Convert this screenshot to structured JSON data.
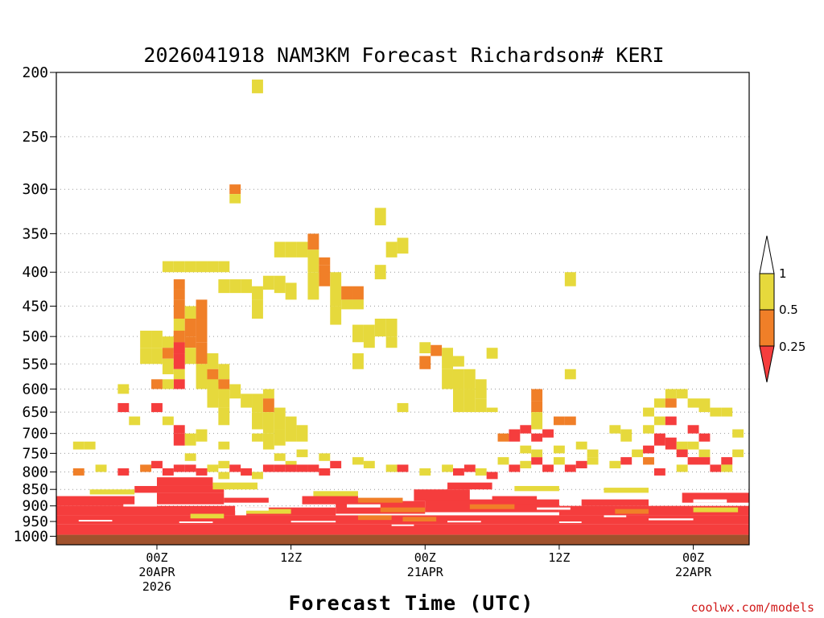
{
  "chart_data": {
    "type": "heatmap",
    "title": "2026041918 NAM3KM Forecast Richardson# KERI",
    "xlabel": "Forecast Time (UTC)",
    "ylabel": "",
    "credit": "coolwx.com/models",
    "y_scale": "log-pressure (inverted)",
    "y_range_hPa": [
      1030,
      200
    ],
    "x_range_hours": [
      -4.5,
      26.5
    ],
    "grid": "horizontal dotted at labeled pressure levels",
    "y_ticks": [
      "200",
      "250",
      "300",
      "350",
      "400",
      "450",
      "500",
      "550",
      "600",
      "650",
      "700",
      "750",
      "800",
      "850",
      "900",
      "950",
      "1000"
    ],
    "x_ticks": [
      {
        "line1": "00Z",
        "line2": "20APR",
        "line3": "2026"
      },
      {
        "line1": "12Z",
        "line2": "",
        "line3": ""
      },
      {
        "line1": "00Z",
        "line2": "21APR",
        "line3": ""
      },
      {
        "line1": "12Z",
        "line2": "",
        "line3": ""
      },
      {
        "line1": "00Z",
        "line2": "22APR",
        "line3": ""
      }
    ],
    "legend": {
      "placement": "right",
      "labels": [
        "1",
        "0.5",
        "0.25"
      ],
      "bins": [
        {
          "range": "<0.25",
          "color": "#f53d3d"
        },
        {
          "range": "0.25-0.5",
          "color": "#f07f28"
        },
        {
          "range": "0.5-1",
          "color": "#e6d93c"
        },
        {
          "range": ">1",
          "color": "#ffffff"
        }
      ]
    },
    "ground": {
      "color": "#a0522d",
      "pressure_top_hPa": 995
    },
    "colors": {
      "red": "#f53d3d",
      "orange": "#f07f28",
      "yellow": "#e6d93c"
    },
    "cells": [
      [
        4.5,
        205,
        215,
        "y"
      ],
      [
        3.5,
        295,
        305,
        "o"
      ],
      [
        3.5,
        305,
        315,
        "y"
      ],
      [
        0.5,
        385,
        400,
        "y"
      ],
      [
        1,
        385,
        400,
        "y"
      ],
      [
        1.5,
        385,
        400,
        "y"
      ],
      [
        2,
        385,
        400,
        "y"
      ],
      [
        2.5,
        385,
        400,
        "y"
      ],
      [
        3,
        385,
        400,
        "y"
      ],
      [
        1,
        410,
        425,
        "o"
      ],
      [
        1,
        425,
        440,
        "o"
      ],
      [
        1,
        440,
        470,
        "o"
      ],
      [
        1,
        470,
        500,
        "y"
      ],
      [
        1,
        500,
        530,
        "y"
      ],
      [
        1.5,
        450,
        470,
        "y"
      ],
      [
        1.5,
        470,
        500,
        "o"
      ],
      [
        1.5,
        500,
        520,
        "o"
      ],
      [
        1.5,
        520,
        550,
        "y"
      ],
      [
        2,
        440,
        470,
        "o"
      ],
      [
        2,
        470,
        510,
        "o"
      ],
      [
        2,
        510,
        550,
        "o"
      ],
      [
        2,
        550,
        600,
        "y"
      ],
      [
        2.5,
        530,
        560,
        "y"
      ],
      [
        2.5,
        560,
        590,
        "o"
      ],
      [
        2.5,
        590,
        640,
        "y"
      ],
      [
        3,
        550,
        580,
        "y"
      ],
      [
        3,
        580,
        600,
        "o"
      ],
      [
        3,
        600,
        640,
        "y"
      ],
      [
        3,
        640,
        680,
        "y"
      ],
      [
        3,
        410,
        430,
        "y"
      ],
      [
        3.5,
        410,
        430,
        "y"
      ],
      [
        4,
        410,
        430,
        "y"
      ],
      [
        4.5,
        420,
        440,
        "y"
      ],
      [
        4.5,
        440,
        470,
        "y"
      ],
      [
        5,
        405,
        425,
        "y"
      ],
      [
        5.5,
        405,
        430,
        "y"
      ],
      [
        6,
        415,
        440,
        "y"
      ],
      [
        3.5,
        590,
        620,
        "y"
      ],
      [
        4,
        610,
        640,
        "y"
      ],
      [
        4.5,
        610,
        650,
        "y"
      ],
      [
        5,
        600,
        620,
        "y"
      ],
      [
        5,
        620,
        650,
        "o"
      ],
      [
        4.5,
        650,
        690,
        "y"
      ],
      [
        5,
        650,
        700,
        "y"
      ],
      [
        5.5,
        640,
        690,
        "y"
      ],
      [
        6,
        660,
        720,
        "y"
      ],
      [
        6.5,
        680,
        720,
        "y"
      ],
      [
        5,
        700,
        740,
        "y"
      ],
      [
        5.5,
        690,
        730,
        "y"
      ],
      [
        4,
        790,
        810,
        "y"
      ],
      [
        4.5,
        800,
        820,
        "y"
      ],
      [
        3,
        800,
        820,
        "y"
      ],
      [
        5.5,
        360,
        380,
        "y"
      ],
      [
        6,
        360,
        380,
        "y"
      ],
      [
        6.5,
        360,
        380,
        "y"
      ],
      [
        7,
        350,
        370,
        "o"
      ],
      [
        7,
        370,
        400,
        "y"
      ],
      [
        7.5,
        380,
        390,
        "o"
      ],
      [
        7.5,
        390,
        420,
        "o"
      ],
      [
        7,
        400,
        440,
        "y"
      ],
      [
        8,
        400,
        450,
        "y"
      ],
      [
        8,
        450,
        480,
        "y"
      ],
      [
        8.5,
        420,
        440,
        "o"
      ],
      [
        9,
        420,
        440,
        "o"
      ],
      [
        8.5,
        440,
        455,
        "y"
      ],
      [
        9,
        440,
        455,
        "y"
      ],
      [
        9,
        480,
        510,
        "y"
      ],
      [
        9.5,
        480,
        520,
        "y"
      ],
      [
        10,
        470,
        500,
        "y"
      ],
      [
        10.5,
        470,
        500,
        "y"
      ],
      [
        9,
        530,
        560,
        "y"
      ],
      [
        10.5,
        500,
        520,
        "y"
      ],
      [
        10,
        390,
        410,
        "y"
      ],
      [
        10.5,
        360,
        380,
        "y"
      ],
      [
        11,
        355,
        375,
        "y"
      ],
      [
        10,
        320,
        340,
        "y"
      ],
      [
        11,
        630,
        650,
        "y"
      ],
      [
        12,
        510,
        530,
        "y"
      ],
      [
        12.5,
        515,
        535,
        "o"
      ],
      [
        12,
        535,
        560,
        "o"
      ],
      [
        13,
        520,
        560,
        "y"
      ],
      [
        13.5,
        535,
        555,
        "y"
      ],
      [
        13,
        560,
        600,
        "y"
      ],
      [
        13.5,
        560,
        600,
        "y"
      ],
      [
        14,
        560,
        600,
        "y"
      ],
      [
        14.5,
        580,
        620,
        "y"
      ],
      [
        15,
        520,
        540,
        "y"
      ],
      [
        13.5,
        600,
        650,
        "y"
      ],
      [
        14,
        600,
        650,
        "y"
      ],
      [
        14.5,
        620,
        650,
        "y"
      ],
      [
        15,
        640,
        650,
        "y"
      ],
      [
        17,
        600,
        625,
        "o"
      ],
      [
        17,
        625,
        650,
        "o"
      ],
      [
        17,
        650,
        690,
        "y"
      ],
      [
        16.5,
        680,
        700,
        "r"
      ],
      [
        17,
        700,
        720,
        "r"
      ],
      [
        17.5,
        690,
        710,
        "r"
      ],
      [
        18,
        660,
        680,
        "o"
      ],
      [
        18.5,
        660,
        680,
        "o"
      ],
      [
        18.5,
        560,
        580,
        "y"
      ],
      [
        18.5,
        400,
        420,
        "y"
      ],
      [
        -3.5,
        720,
        740,
        "y"
      ],
      [
        -3,
        720,
        740,
        "y"
      ],
      [
        -1.5,
        590,
        610,
        "y"
      ],
      [
        -1.5,
        630,
        650,
        "r"
      ],
      [
        -1,
        660,
        680,
        "y"
      ],
      [
        0,
        630,
        650,
        "r"
      ],
      [
        -0.5,
        490,
        520,
        "y"
      ],
      [
        0,
        490,
        520,
        "y"
      ],
      [
        -0.5,
        520,
        550,
        "y"
      ],
      [
        0,
        520,
        550,
        "y"
      ],
      [
        0.5,
        500,
        520,
        "y"
      ],
      [
        0.5,
        520,
        540,
        "o"
      ],
      [
        0.5,
        540,
        570,
        "y"
      ],
      [
        1,
        490,
        510,
        "o"
      ],
      [
        1,
        510,
        530,
        "r"
      ],
      [
        1,
        530,
        560,
        "r"
      ],
      [
        1,
        560,
        580,
        "y"
      ],
      [
        1,
        580,
        600,
        "r"
      ],
      [
        0,
        580,
        600,
        "o"
      ],
      [
        0.5,
        580,
        600,
        "y"
      ],
      [
        1,
        680,
        700,
        "r"
      ],
      [
        1,
        700,
        730,
        "r"
      ],
      [
        1.5,
        700,
        730,
        "y"
      ],
      [
        2,
        690,
        720,
        "y"
      ],
      [
        2.5,
        580,
        620,
        "y"
      ],
      [
        0.5,
        660,
        680,
        "y"
      ],
      [
        1.5,
        750,
        770,
        "y"
      ],
      [
        3,
        720,
        740,
        "y"
      ],
      [
        4.5,
        700,
        720,
        "y"
      ],
      [
        5.5,
        750,
        770,
        "y"
      ],
      [
        6,
        770,
        790,
        "y"
      ],
      [
        6.5,
        740,
        760,
        "y"
      ],
      [
        7.5,
        750,
        770,
        "y"
      ],
      [
        5,
        780,
        800,
        "r"
      ],
      [
        5.5,
        780,
        800,
        "r"
      ],
      [
        6,
        780,
        800,
        "r"
      ],
      [
        7,
        780,
        800,
        "r"
      ],
      [
        6.5,
        780,
        800,
        "r"
      ],
      [
        8,
        770,
        790,
        "r"
      ],
      [
        7.5,
        790,
        810,
        "r"
      ],
      [
        9,
        760,
        780,
        "y"
      ],
      [
        9.5,
        770,
        790,
        "y"
      ],
      [
        -2.5,
        780,
        800,
        "y"
      ],
      [
        -3.5,
        790,
        810,
        "o"
      ],
      [
        -1.5,
        790,
        810,
        "r"
      ],
      [
        -0.5,
        780,
        800,
        "o"
      ],
      [
        0,
        770,
        790,
        "r"
      ],
      [
        0.5,
        790,
        810,
        "r"
      ],
      [
        1,
        780,
        800,
        "r"
      ],
      [
        1.5,
        780,
        800,
        "r"
      ],
      [
        2,
        790,
        810,
        "r"
      ],
      [
        2.5,
        780,
        800,
        "y"
      ],
      [
        3,
        770,
        790,
        "y"
      ],
      [
        3.5,
        780,
        800,
        "r"
      ],
      [
        4,
        790,
        810,
        "r"
      ],
      [
        10.5,
        780,
        800,
        "y"
      ],
      [
        11,
        780,
        800,
        "r"
      ],
      [
        12,
        790,
        810,
        "y"
      ],
      [
        13,
        780,
        800,
        "y"
      ],
      [
        13.5,
        790,
        810,
        "r"
      ],
      [
        14,
        780,
        800,
        "r"
      ],
      [
        14.5,
        790,
        810,
        "y"
      ],
      [
        15,
        800,
        820,
        "r"
      ],
      [
        15.5,
        760,
        780,
        "y"
      ],
      [
        16,
        780,
        800,
        "r"
      ],
      [
        16.5,
        770,
        790,
        "y"
      ],
      [
        17,
        760,
        780,
        "r"
      ],
      [
        17.5,
        780,
        800,
        "r"
      ],
      [
        18,
        760,
        780,
        "y"
      ],
      [
        18.5,
        780,
        800,
        "r"
      ],
      [
        19,
        770,
        790,
        "r"
      ],
      [
        19.5,
        740,
        760,
        "y"
      ],
      [
        15.5,
        700,
        720,
        "o"
      ],
      [
        16,
        690,
        720,
        "r"
      ],
      [
        16.5,
        730,
        750,
        "y"
      ],
      [
        17,
        740,
        760,
        "y"
      ],
      [
        18,
        730,
        750,
        "y"
      ],
      [
        19.5,
        760,
        780,
        "y"
      ],
      [
        20.5,
        770,
        790,
        "y"
      ],
      [
        21,
        760,
        780,
        "r"
      ],
      [
        21.5,
        740,
        760,
        "y"
      ],
      [
        22,
        730,
        750,
        "r"
      ],
      [
        22.5,
        700,
        730,
        "r"
      ],
      [
        22,
        680,
        700,
        "y"
      ],
      [
        23,
        710,
        740,
        "r"
      ],
      [
        23.5,
        720,
        750,
        "y"
      ],
      [
        24,
        760,
        780,
        "r"
      ],
      [
        24.5,
        740,
        760,
        "y"
      ],
      [
        25,
        780,
        800,
        "r"
      ],
      [
        25.5,
        760,
        780,
        "r"
      ],
      [
        26,
        740,
        760,
        "y"
      ],
      [
        26,
        690,
        710,
        "y"
      ],
      [
        22,
        640,
        660,
        "y"
      ],
      [
        22.5,
        620,
        640,
        "y"
      ],
      [
        22.5,
        660,
        680,
        "y"
      ],
      [
        23,
        600,
        620,
        "y"
      ],
      [
        23,
        620,
        640,
        "o"
      ],
      [
        23.5,
        600,
        620,
        "y"
      ],
      [
        24,
        620,
        640,
        "y"
      ],
      [
        24.5,
        620,
        650,
        "y"
      ],
      [
        25,
        640,
        660,
        "y"
      ],
      [
        25.5,
        640,
        660,
        "y"
      ],
      [
        23,
        660,
        680,
        "r"
      ],
      [
        24,
        680,
        700,
        "r"
      ],
      [
        24.5,
        700,
        720,
        "r"
      ],
      [
        24,
        720,
        740,
        "y"
      ],
      [
        23.5,
        740,
        760,
        "r"
      ],
      [
        22,
        760,
        780,
        "o"
      ],
      [
        22.5,
        790,
        810,
        "r"
      ],
      [
        23.5,
        780,
        800,
        "y"
      ],
      [
        24.5,
        760,
        780,
        "r"
      ],
      [
        25.5,
        780,
        800,
        "y"
      ],
      [
        21,
        690,
        720,
        "y"
      ],
      [
        20.5,
        680,
        700,
        "y"
      ],
      [
        19,
        720,
        740,
        "y"
      ]
    ],
    "bands": [
      [
        -4.5,
        26.5,
        960,
        995,
        "r"
      ],
      [
        -4.5,
        26.5,
        930,
        960,
        "r"
      ],
      [
        -4.5,
        3.5,
        900,
        930,
        "r"
      ],
      [
        4,
        8,
        905,
        930,
        "r"
      ],
      [
        8,
        12,
        885,
        925,
        "r"
      ],
      [
        12,
        18,
        880,
        920,
        "r"
      ],
      [
        18,
        26.5,
        900,
        930,
        "r"
      ],
      [
        -4.5,
        -1,
        870,
        900,
        "r"
      ],
      [
        0,
        3,
        860,
        895,
        "r"
      ],
      [
        6.5,
        9,
        870,
        895,
        "r"
      ],
      [
        11.5,
        14,
        850,
        885,
        "r"
      ],
      [
        15,
        17,
        870,
        895,
        "r"
      ],
      [
        -1,
        3,
        840,
        860,
        "r"
      ],
      [
        3,
        5,
        875,
        890,
        "r"
      ],
      [
        19,
        22,
        880,
        900,
        "r"
      ],
      [
        23.5,
        26.5,
        860,
        890,
        "r"
      ],
      [
        0,
        2.5,
        815,
        840,
        "r"
      ],
      [
        13,
        15,
        830,
        850,
        "r"
      ],
      [
        20,
        22,
        845,
        860,
        "y"
      ],
      [
        16,
        18,
        840,
        855,
        "y"
      ],
      [
        -3,
        -1,
        850,
        865,
        "y"
      ],
      [
        2.5,
        4.5,
        830,
        850,
        "y"
      ],
      [
        7,
        9,
        855,
        870,
        "y"
      ],
      [
        9,
        11,
        875,
        890,
        "o"
      ],
      [
        10,
        12,
        905,
        920,
        "o"
      ],
      [
        14,
        16,
        895,
        910,
        "o"
      ],
      [
        4,
        6,
        910,
        925,
        "y"
      ],
      [
        20.5,
        22,
        910,
        925,
        "o"
      ],
      [
        24,
        26,
        905,
        920,
        "y"
      ],
      [
        9,
        10.5,
        930,
        945,
        "o"
      ],
      [
        11,
        12.5,
        935,
        950,
        "o"
      ],
      [
        1.5,
        3,
        925,
        940,
        "y"
      ],
      [
        -4.5,
        26.5,
        985,
        995,
        "r"
      ]
    ],
    "gaps": [
      [
        -3.5,
        -2,
        945,
        950
      ],
      [
        1,
        2.5,
        950,
        955
      ],
      [
        6,
        8,
        948,
        953
      ],
      [
        13,
        14.5,
        948,
        953
      ],
      [
        18,
        19,
        950,
        955
      ],
      [
        22,
        24,
        940,
        946
      ],
      [
        3.5,
        5,
        905,
        915
      ],
      [
        8.5,
        10,
        895,
        905
      ],
      [
        -1.5,
        0,
        895,
        902
      ],
      [
        17,
        18.5,
        905,
        912
      ],
      [
        24,
        25.5,
        880,
        890
      ],
      [
        20,
        21,
        930,
        936
      ],
      [
        10.5,
        11.5,
        960,
        965
      ]
    ]
  }
}
